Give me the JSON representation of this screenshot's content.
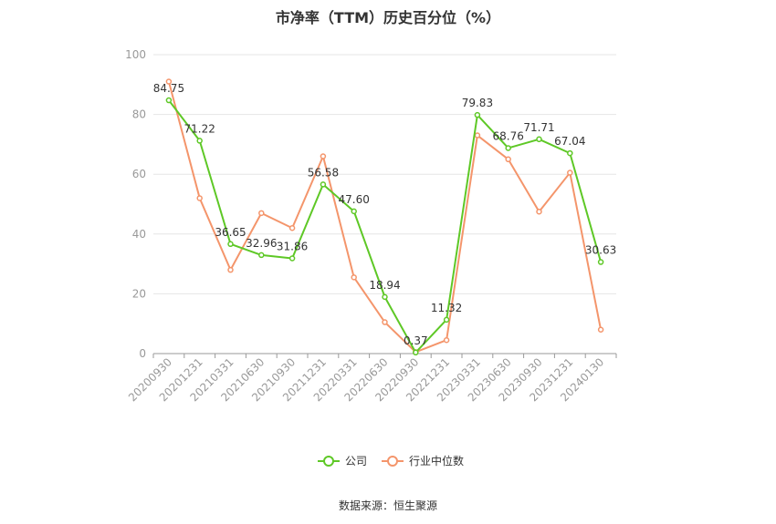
{
  "title": "市净率（TTM）历史百分位（%）",
  "source": "数据来源：恒生聚源",
  "colors": {
    "company": "#5ec826",
    "industry": "#f4956b",
    "grid": "#e6e6e6",
    "axis": "#999999"
  },
  "chart_data": {
    "type": "line",
    "title": "市净率（TTM）历史百分位（%）",
    "categories": [
      "20200930",
      "20201231",
      "20210331",
      "20210630",
      "20210930",
      "20211231",
      "20220331",
      "20220630",
      "20220930",
      "20221231",
      "20230331",
      "20230630",
      "20230930",
      "20231231",
      "20240130"
    ],
    "ylim": [
      0,
      100
    ],
    "yticks": [
      0,
      20,
      40,
      60,
      80,
      100
    ],
    "grid": true,
    "legend": "bottom-center",
    "series": [
      {
        "name": "公司",
        "values": [
          84.75,
          71.22,
          36.65,
          32.96,
          31.86,
          56.58,
          47.6,
          18.94,
          0.37,
          11.32,
          79.83,
          68.76,
          71.71,
          67.04,
          30.63
        ],
        "labels": [
          "84.75",
          "71.22",
          "36.65",
          "32.96",
          "31.86",
          "56.58",
          "47.60",
          "18.94",
          "0.37",
          "11.32",
          "79.83",
          "68.76",
          "71.71",
          "67.04",
          "30.63"
        ]
      },
      {
        "name": "行业中位数",
        "values": [
          91,
          52,
          28,
          47,
          42,
          66,
          25.5,
          10.5,
          0.5,
          4.5,
          73,
          65,
          47.5,
          60.5,
          8
        ]
      }
    ]
  }
}
